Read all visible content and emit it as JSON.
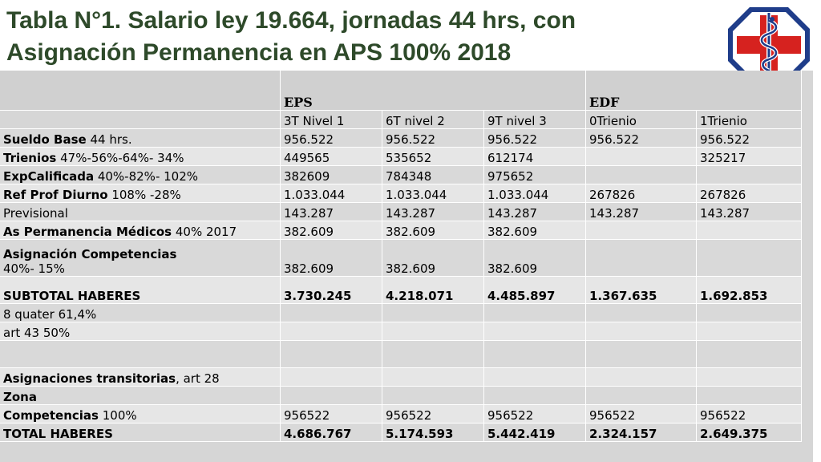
{
  "title": {
    "line1": "Tabla N°1. Salario ley 19.664, jornadas 44 hrs, con",
    "line2": "Asignación Permanencia en APS 100% 2018"
  },
  "logo": {
    "icon": "medical-caduceus-logo",
    "colors": {
      "red": "#d6221f",
      "blue": "#1f3d8a"
    }
  },
  "table": {
    "groups": [
      "EPS",
      "EDF"
    ],
    "columns": [
      "3T Nivel 1",
      "6T nivel 2",
      "9T nivel 3",
      "0Trienio",
      "1Trienio"
    ],
    "rows": [
      {
        "bold": "Sueldo Base",
        "rest": " 44 hrs.",
        "values": [
          "956.522",
          "956.522",
          "956.522",
          "956.522",
          "956.522"
        ]
      },
      {
        "bold": "Trienios",
        "rest": " 47%-56%-64%- 34%",
        "values": [
          "449565",
          "535652",
          "612174",
          "",
          "325217"
        ]
      },
      {
        "bold": "ExpCalificada",
        "rest": " 40%-82%- 102%",
        "values": [
          "382609",
          "784348",
          "975652",
          "",
          ""
        ]
      },
      {
        "bold": "Ref Prof Diurno",
        "rest": " 108% -28%",
        "values": [
          "1.033.044",
          "1.033.044",
          "1.033.044",
          "267826",
          "267826"
        ]
      },
      {
        "bold": "",
        "rest": "Previsional",
        "values": [
          "143.287",
          "143.287",
          "143.287",
          "143.287",
          "143.287"
        ]
      },
      {
        "bold": "As Permanencia Médicos",
        "rest": " 40% 2017",
        "values": [
          "382.609",
          "382.609",
          "382.609",
          "",
          ""
        ]
      },
      {
        "bold": "Asignación Competencias",
        "rest": "",
        "rest2": "40%- 15%",
        "values": [
          "382.609",
          "382.609",
          "382.609",
          "",
          ""
        ]
      },
      {
        "bold": "SUBTOTAL HABERES",
        "rest": "",
        "values": [
          "3.730.245",
          "4.218.071",
          "4.485.897",
          "1.367.635",
          "1.692.853"
        ]
      },
      {
        "bold": "",
        "rest": "8 quater   61,4%",
        "values": [
          "",
          "",
          "",
          "",
          ""
        ]
      },
      {
        "bold": "",
        "rest": "art 43   50%",
        "values": [
          "",
          "",
          "",
          "",
          ""
        ]
      },
      {
        "bold": "",
        "rest": "",
        "values": [
          "",
          "",
          "",
          "",
          ""
        ]
      },
      {
        "bold": "Asignaciones transitorias",
        "rest": ", art 28",
        "values": [
          "",
          "",
          "",
          "",
          ""
        ]
      },
      {
        "bold": "Zona",
        "rest": "",
        "values": [
          "",
          "",
          "",
          "",
          ""
        ]
      },
      {
        "bold": "Competencias",
        "rest": " 100%",
        "values": [
          "956522",
          "956522",
          "956522",
          "956522",
          "956522"
        ]
      },
      {
        "bold": "TOTAL HABERES",
        "rest": "",
        "values": [
          "4.686.767",
          "5.174.593",
          "5.442.419",
          "2.324.157",
          "2.649.375"
        ]
      }
    ]
  }
}
